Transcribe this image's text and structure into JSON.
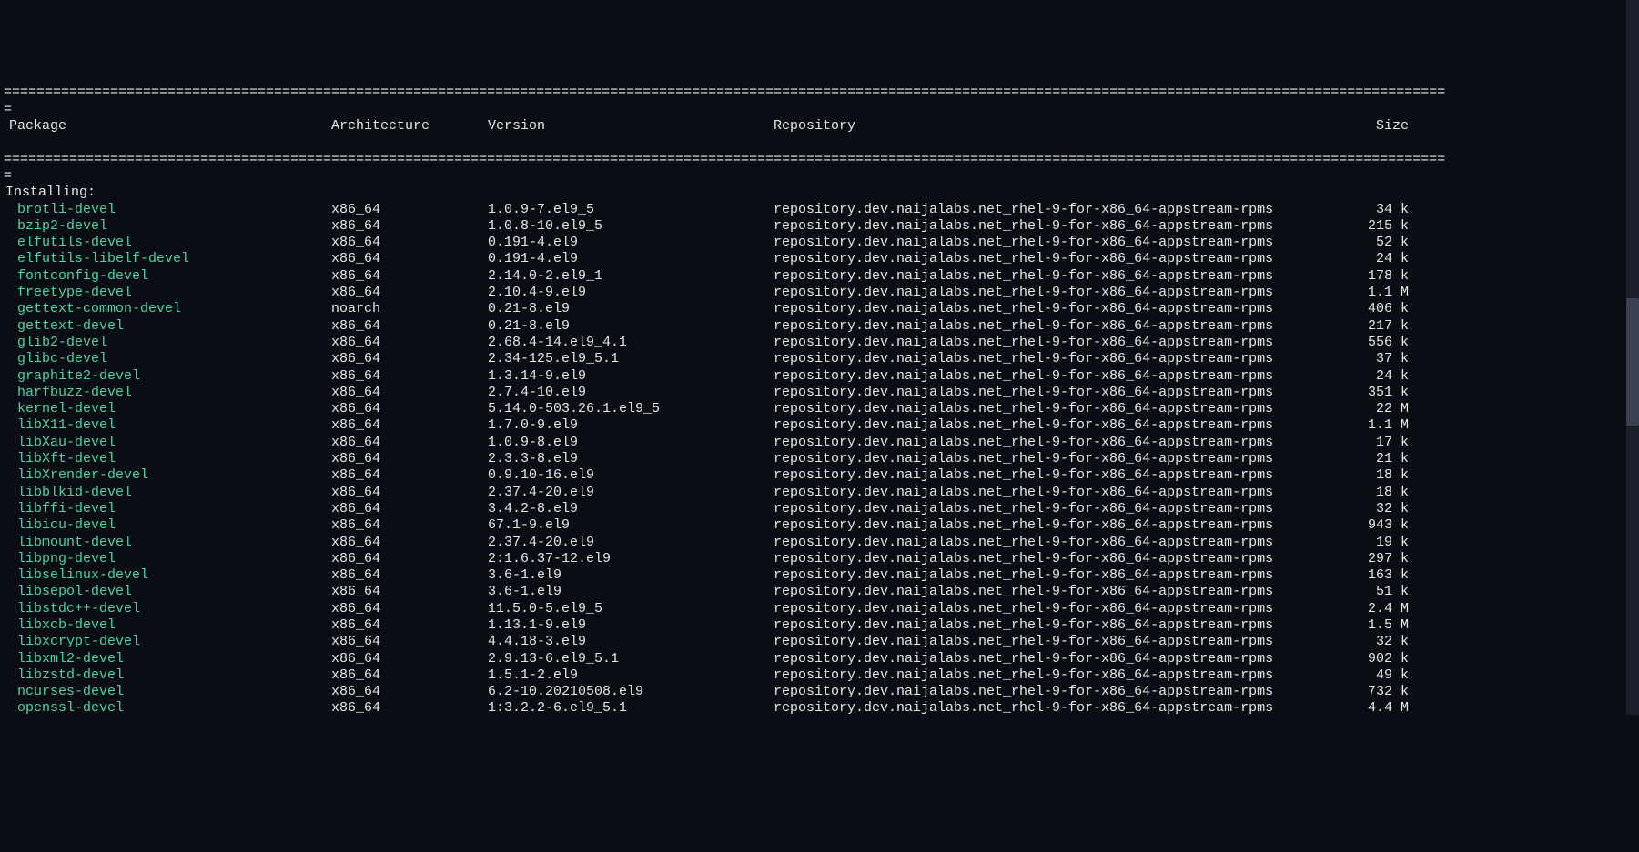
{
  "divider_top": "================================================================================================================================================================================",
  "divider_eq": "=",
  "header": {
    "package": "Package",
    "architecture": "Architecture",
    "version": "Version",
    "repository": "Repository",
    "size": "Size"
  },
  "section": "Installing:",
  "colors": {
    "bg": "#0a0e14",
    "text": "#e6e6e6",
    "pkg": "#4fd1a5"
  },
  "rows": [
    {
      "pkg": "brotli-devel",
      "arch": "x86_64",
      "ver": "1.0.9-7.el9_5",
      "repo": "repository.dev.naijalabs.net_rhel-9-for-x86_64-appstream-rpms",
      "size": "34 k"
    },
    {
      "pkg": "bzip2-devel",
      "arch": "x86_64",
      "ver": "1.0.8-10.el9_5",
      "repo": "repository.dev.naijalabs.net_rhel-9-for-x86_64-appstream-rpms",
      "size": "215 k"
    },
    {
      "pkg": "elfutils-devel",
      "arch": "x86_64",
      "ver": "0.191-4.el9",
      "repo": "repository.dev.naijalabs.net_rhel-9-for-x86_64-appstream-rpms",
      "size": "52 k"
    },
    {
      "pkg": "elfutils-libelf-devel",
      "arch": "x86_64",
      "ver": "0.191-4.el9",
      "repo": "repository.dev.naijalabs.net_rhel-9-for-x86_64-appstream-rpms",
      "size": "24 k"
    },
    {
      "pkg": "fontconfig-devel",
      "arch": "x86_64",
      "ver": "2.14.0-2.el9_1",
      "repo": "repository.dev.naijalabs.net_rhel-9-for-x86_64-appstream-rpms",
      "size": "178 k"
    },
    {
      "pkg": "freetype-devel",
      "arch": "x86_64",
      "ver": "2.10.4-9.el9",
      "repo": "repository.dev.naijalabs.net_rhel-9-for-x86_64-appstream-rpms",
      "size": "1.1 M"
    },
    {
      "pkg": "gettext-common-devel",
      "arch": "noarch",
      "ver": "0.21-8.el9",
      "repo": "repository.dev.naijalabs.net_rhel-9-for-x86_64-appstream-rpms",
      "size": "406 k"
    },
    {
      "pkg": "gettext-devel",
      "arch": "x86_64",
      "ver": "0.21-8.el9",
      "repo": "repository.dev.naijalabs.net_rhel-9-for-x86_64-appstream-rpms",
      "size": "217 k"
    },
    {
      "pkg": "glib2-devel",
      "arch": "x86_64",
      "ver": "2.68.4-14.el9_4.1",
      "repo": "repository.dev.naijalabs.net_rhel-9-for-x86_64-appstream-rpms",
      "size": "556 k"
    },
    {
      "pkg": "glibc-devel",
      "arch": "x86_64",
      "ver": "2.34-125.el9_5.1",
      "repo": "repository.dev.naijalabs.net_rhel-9-for-x86_64-appstream-rpms",
      "size": "37 k"
    },
    {
      "pkg": "graphite2-devel",
      "arch": "x86_64",
      "ver": "1.3.14-9.el9",
      "repo": "repository.dev.naijalabs.net_rhel-9-for-x86_64-appstream-rpms",
      "size": "24 k"
    },
    {
      "pkg": "harfbuzz-devel",
      "arch": "x86_64",
      "ver": "2.7.4-10.el9",
      "repo": "repository.dev.naijalabs.net_rhel-9-for-x86_64-appstream-rpms",
      "size": "351 k"
    },
    {
      "pkg": "kernel-devel",
      "arch": "x86_64",
      "ver": "5.14.0-503.26.1.el9_5",
      "repo": "repository.dev.naijalabs.net_rhel-9-for-x86_64-appstream-rpms",
      "size": "22 M"
    },
    {
      "pkg": "libX11-devel",
      "arch": "x86_64",
      "ver": "1.7.0-9.el9",
      "repo": "repository.dev.naijalabs.net_rhel-9-for-x86_64-appstream-rpms",
      "size": "1.1 M"
    },
    {
      "pkg": "libXau-devel",
      "arch": "x86_64",
      "ver": "1.0.9-8.el9",
      "repo": "repository.dev.naijalabs.net_rhel-9-for-x86_64-appstream-rpms",
      "size": "17 k"
    },
    {
      "pkg": "libXft-devel",
      "arch": "x86_64",
      "ver": "2.3.3-8.el9",
      "repo": "repository.dev.naijalabs.net_rhel-9-for-x86_64-appstream-rpms",
      "size": "21 k"
    },
    {
      "pkg": "libXrender-devel",
      "arch": "x86_64",
      "ver": "0.9.10-16.el9",
      "repo": "repository.dev.naijalabs.net_rhel-9-for-x86_64-appstream-rpms",
      "size": "18 k"
    },
    {
      "pkg": "libblkid-devel",
      "arch": "x86_64",
      "ver": "2.37.4-20.el9",
      "repo": "repository.dev.naijalabs.net_rhel-9-for-x86_64-appstream-rpms",
      "size": "18 k"
    },
    {
      "pkg": "libffi-devel",
      "arch": "x86_64",
      "ver": "3.4.2-8.el9",
      "repo": "repository.dev.naijalabs.net_rhel-9-for-x86_64-appstream-rpms",
      "size": "32 k"
    },
    {
      "pkg": "libicu-devel",
      "arch": "x86_64",
      "ver": "67.1-9.el9",
      "repo": "repository.dev.naijalabs.net_rhel-9-for-x86_64-appstream-rpms",
      "size": "943 k"
    },
    {
      "pkg": "libmount-devel",
      "arch": "x86_64",
      "ver": "2.37.4-20.el9",
      "repo": "repository.dev.naijalabs.net_rhel-9-for-x86_64-appstream-rpms",
      "size": "19 k"
    },
    {
      "pkg": "libpng-devel",
      "arch": "x86_64",
      "ver": "2:1.6.37-12.el9",
      "repo": "repository.dev.naijalabs.net_rhel-9-for-x86_64-appstream-rpms",
      "size": "297 k"
    },
    {
      "pkg": "libselinux-devel",
      "arch": "x86_64",
      "ver": "3.6-1.el9",
      "repo": "repository.dev.naijalabs.net_rhel-9-for-x86_64-appstream-rpms",
      "size": "163 k"
    },
    {
      "pkg": "libsepol-devel",
      "arch": "x86_64",
      "ver": "3.6-1.el9",
      "repo": "repository.dev.naijalabs.net_rhel-9-for-x86_64-appstream-rpms",
      "size": "51 k"
    },
    {
      "pkg": "libstdc++-devel",
      "arch": "x86_64",
      "ver": "11.5.0-5.el9_5",
      "repo": "repository.dev.naijalabs.net_rhel-9-for-x86_64-appstream-rpms",
      "size": "2.4 M"
    },
    {
      "pkg": "libxcb-devel",
      "arch": "x86_64",
      "ver": "1.13.1-9.el9",
      "repo": "repository.dev.naijalabs.net_rhel-9-for-x86_64-appstream-rpms",
      "size": "1.5 M"
    },
    {
      "pkg": "libxcrypt-devel",
      "arch": "x86_64",
      "ver": "4.4.18-3.el9",
      "repo": "repository.dev.naijalabs.net_rhel-9-for-x86_64-appstream-rpms",
      "size": "32 k"
    },
    {
      "pkg": "libxml2-devel",
      "arch": "x86_64",
      "ver": "2.9.13-6.el9_5.1",
      "repo": "repository.dev.naijalabs.net_rhel-9-for-x86_64-appstream-rpms",
      "size": "902 k"
    },
    {
      "pkg": "libzstd-devel",
      "arch": "x86_64",
      "ver": "1.5.1-2.el9",
      "repo": "repository.dev.naijalabs.net_rhel-9-for-x86_64-appstream-rpms",
      "size": "49 k"
    },
    {
      "pkg": "ncurses-devel",
      "arch": "x86_64",
      "ver": "6.2-10.20210508.el9",
      "repo": "repository.dev.naijalabs.net_rhel-9-for-x86_64-appstream-rpms",
      "size": "732 k"
    },
    {
      "pkg": "openssl-devel",
      "arch": "x86_64",
      "ver": "1:3.2.2-6.el9_5.1",
      "repo": "repository.dev.naijalabs.net_rhel-9-for-x86_64-appstream-rpms",
      "size": "4.4 M"
    }
  ]
}
